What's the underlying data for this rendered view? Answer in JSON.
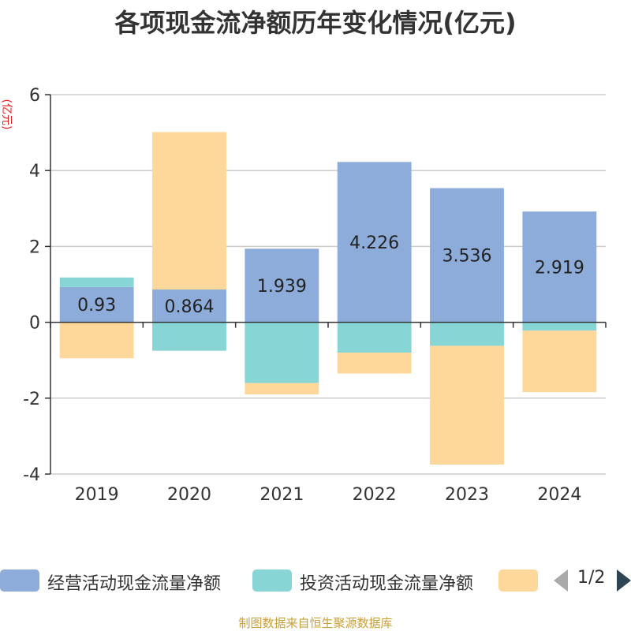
{
  "chart_data": {
    "type": "bar",
    "stacked": true,
    "title": "各项现金流净额历年变化情况(亿元)",
    "ylabel": "(亿元)",
    "xlabel": "",
    "categories": [
      "2019",
      "2020",
      "2021",
      "2022",
      "2023",
      "2024"
    ],
    "ylim": [
      -4,
      6
    ],
    "yticks": [
      -4,
      -2,
      0,
      2,
      4,
      6
    ],
    "grid": true,
    "series": [
      {
        "name": "经营活动现金流量净额",
        "color": "#8eacda",
        "values": [
          0.93,
          0.864,
          1.939,
          4.226,
          3.536,
          2.919
        ],
        "show_labels": true
      },
      {
        "name": "投资活动现金流量净额",
        "color": "#88d5d5",
        "values": [
          0.25,
          -0.75,
          -1.6,
          -0.8,
          -0.62,
          -0.22
        ],
        "show_labels": false
      },
      {
        "name": "",
        "color": "#fdd89a",
        "values": [
          -0.95,
          4.15,
          -0.3,
          -0.55,
          -3.13,
          -1.62
        ],
        "show_labels": false
      }
    ]
  },
  "legend": {
    "pager_text": "1/2"
  },
  "footer": {
    "credit": "制图数据来自恒生聚源数据库"
  }
}
